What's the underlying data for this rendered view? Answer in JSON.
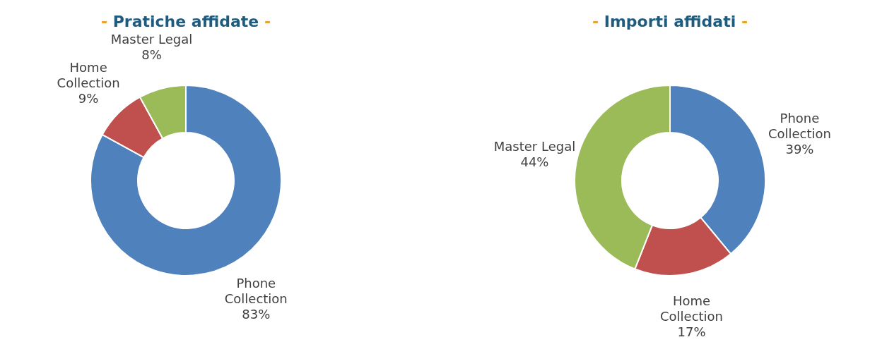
{
  "chart_data": [
    {
      "type": "donut",
      "title": "- Pratiche affidate -",
      "categories": [
        "Phone Collection",
        "Home Collection",
        "Master Legal"
      ],
      "values": [
        83,
        9,
        8
      ],
      "value_labels": [
        "83%",
        "9%",
        "8%"
      ],
      "colors": [
        "#4f81bd",
        "#c0504d",
        "#9bbb59"
      ]
    },
    {
      "type": "donut",
      "title": "- Importi affidati -",
      "categories": [
        "Phone Collection",
        "Home Collection",
        "Master Legal"
      ],
      "values": [
        39,
        17,
        44
      ],
      "value_labels": [
        "39%",
        "17%",
        "44%"
      ],
      "colors": [
        "#4f81bd",
        "#c0504d",
        "#9bbb59"
      ]
    }
  ]
}
